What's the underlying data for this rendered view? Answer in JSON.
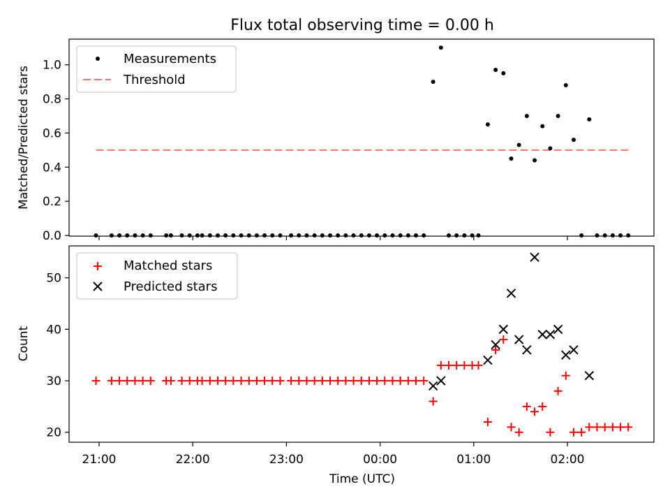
{
  "chart_data": [
    {
      "type": "scatter",
      "title": "Flux total observing time = 0.00 h",
      "xlabel": "",
      "ylabel": "Matched/Predicted stars",
      "ylim": [
        0,
        1.15
      ],
      "yticks": [
        "0.0",
        "0.2",
        "0.4",
        "0.6",
        "0.8",
        "1.0"
      ],
      "legend_position": "top-left",
      "grid": false,
      "series": [
        {
          "name": "Measurements",
          "marker": "dot",
          "color": "#000000",
          "points": [
            [
              "20:58",
              0
            ],
            [
              "21:08",
              0
            ],
            [
              "21:13",
              0
            ],
            [
              "21:18",
              0
            ],
            [
              "21:23",
              0
            ],
            [
              "21:28",
              0
            ],
            [
              "21:33",
              0
            ],
            [
              "21:43",
              0
            ],
            [
              "21:46",
              0
            ],
            [
              "21:53",
              0
            ],
            [
              "21:58",
              0
            ],
            [
              "22:03",
              0
            ],
            [
              "22:06",
              0
            ],
            [
              "22:11",
              0
            ],
            [
              "22:16",
              0
            ],
            [
              "22:21",
              0
            ],
            [
              "22:26",
              0
            ],
            [
              "22:31",
              0
            ],
            [
              "22:36",
              0
            ],
            [
              "22:41",
              0
            ],
            [
              "22:46",
              0
            ],
            [
              "22:51",
              0
            ],
            [
              "22:56",
              0
            ],
            [
              "23:03",
              0
            ],
            [
              "23:08",
              0
            ],
            [
              "23:13",
              0
            ],
            [
              "23:18",
              0
            ],
            [
              "23:23",
              0
            ],
            [
              "23:28",
              0
            ],
            [
              "23:33",
              0
            ],
            [
              "23:38",
              0
            ],
            [
              "23:43",
              0
            ],
            [
              "23:48",
              0
            ],
            [
              "23:53",
              0
            ],
            [
              "23:58",
              0
            ],
            [
              "00:03",
              0
            ],
            [
              "00:08",
              0
            ],
            [
              "00:13",
              0
            ],
            [
              "00:18",
              0
            ],
            [
              "00:23",
              0
            ],
            [
              "00:28",
              0
            ],
            [
              "00:34",
              0.9
            ],
            [
              "00:39",
              1.1
            ],
            [
              "00:44",
              0
            ],
            [
              "00:49",
              0
            ],
            [
              "00:54",
              0
            ],
            [
              "00:59",
              0
            ],
            [
              "01:03",
              0
            ],
            [
              "01:09",
              0.65
            ],
            [
              "01:14",
              0.97
            ],
            [
              "01:19",
              0.95
            ],
            [
              "01:24",
              0.45
            ],
            [
              "01:29",
              0.53
            ],
            [
              "01:34",
              0.7
            ],
            [
              "01:39",
              0.44
            ],
            [
              "01:44",
              0.64
            ],
            [
              "01:49",
              0.51
            ],
            [
              "01:54",
              0.7
            ],
            [
              "01:59",
              0.88
            ],
            [
              "02:04",
              0.56
            ],
            [
              "02:09",
              0
            ],
            [
              "02:14",
              0.68
            ],
            [
              "02:19",
              0
            ],
            [
              "02:24",
              0
            ],
            [
              "02:29",
              0
            ],
            [
              "02:34",
              0
            ],
            [
              "02:39",
              0
            ]
          ]
        },
        {
          "name": "Threshold",
          "marker": "dashed-line",
          "color": "#ff7070",
          "points": [
            [
              "20:58",
              0.5
            ],
            [
              "02:39",
              0.5
            ]
          ]
        }
      ]
    },
    {
      "type": "scatter",
      "title": "",
      "xlabel": "Time (UTC)",
      "ylabel": "Count",
      "ylim": [
        18.2,
        56.2
      ],
      "yticks": [
        "20",
        "30",
        "40",
        "50"
      ],
      "xticks": [
        "21:00",
        "22:00",
        "23:00",
        "00:00",
        "01:00",
        "02:00"
      ],
      "legend_position": "top-left",
      "grid": false,
      "series": [
        {
          "name": "Matched stars",
          "marker": "plus",
          "color": "#ff0000",
          "points": [
            [
              "20:58",
              30
            ],
            [
              "21:08",
              30
            ],
            [
              "21:13",
              30
            ],
            [
              "21:18",
              30
            ],
            [
              "21:23",
              30
            ],
            [
              "21:28",
              30
            ],
            [
              "21:33",
              30
            ],
            [
              "21:43",
              30
            ],
            [
              "21:46",
              30
            ],
            [
              "21:53",
              30
            ],
            [
              "21:58",
              30
            ],
            [
              "22:03",
              30
            ],
            [
              "22:06",
              30
            ],
            [
              "22:11",
              30
            ],
            [
              "22:16",
              30
            ],
            [
              "22:21",
              30
            ],
            [
              "22:26",
              30
            ],
            [
              "22:31",
              30
            ],
            [
              "22:36",
              30
            ],
            [
              "22:41",
              30
            ],
            [
              "22:46",
              30
            ],
            [
              "22:51",
              30
            ],
            [
              "22:56",
              30
            ],
            [
              "23:03",
              30
            ],
            [
              "23:08",
              30
            ],
            [
              "23:13",
              30
            ],
            [
              "23:18",
              30
            ],
            [
              "23:23",
              30
            ],
            [
              "23:28",
              30
            ],
            [
              "23:33",
              30
            ],
            [
              "23:38",
              30
            ],
            [
              "23:43",
              30
            ],
            [
              "23:48",
              30
            ],
            [
              "23:53",
              30
            ],
            [
              "23:58",
              30
            ],
            [
              "00:03",
              30
            ],
            [
              "00:08",
              30
            ],
            [
              "00:13",
              30
            ],
            [
              "00:18",
              30
            ],
            [
              "00:23",
              30
            ],
            [
              "00:28",
              30
            ],
            [
              "00:34",
              26
            ],
            [
              "00:39",
              33
            ],
            [
              "00:44",
              33
            ],
            [
              "00:49",
              33
            ],
            [
              "00:54",
              33
            ],
            [
              "00:59",
              33
            ],
            [
              "01:03",
              33
            ],
            [
              "01:09",
              22
            ],
            [
              "01:14",
              36
            ],
            [
              "01:19",
              38
            ],
            [
              "01:24",
              21
            ],
            [
              "01:29",
              20
            ],
            [
              "01:34",
              25
            ],
            [
              "01:39",
              24
            ],
            [
              "01:44",
              25
            ],
            [
              "01:49",
              20
            ],
            [
              "01:54",
              28
            ],
            [
              "01:59",
              31
            ],
            [
              "02:04",
              20
            ],
            [
              "02:09",
              20
            ],
            [
              "02:14",
              21
            ],
            [
              "02:19",
              21
            ],
            [
              "02:24",
              21
            ],
            [
              "02:29",
              21
            ],
            [
              "02:34",
              21
            ],
            [
              "02:39",
              21
            ]
          ]
        },
        {
          "name": "Predicted stars",
          "marker": "x",
          "color": "#000000",
          "points": [
            [
              "00:34",
              29
            ],
            [
              "00:39",
              30
            ],
            [
              "01:09",
              34
            ],
            [
              "01:14",
              37
            ],
            [
              "01:19",
              40
            ],
            [
              "01:24",
              47
            ],
            [
              "01:29",
              38
            ],
            [
              "01:34",
              36
            ],
            [
              "01:39",
              54
            ],
            [
              "01:44",
              39
            ],
            [
              "01:49",
              39
            ],
            [
              "01:54",
              40
            ],
            [
              "01:59",
              35
            ],
            [
              "02:04",
              36
            ],
            [
              "02:14",
              31
            ]
          ]
        }
      ]
    }
  ]
}
